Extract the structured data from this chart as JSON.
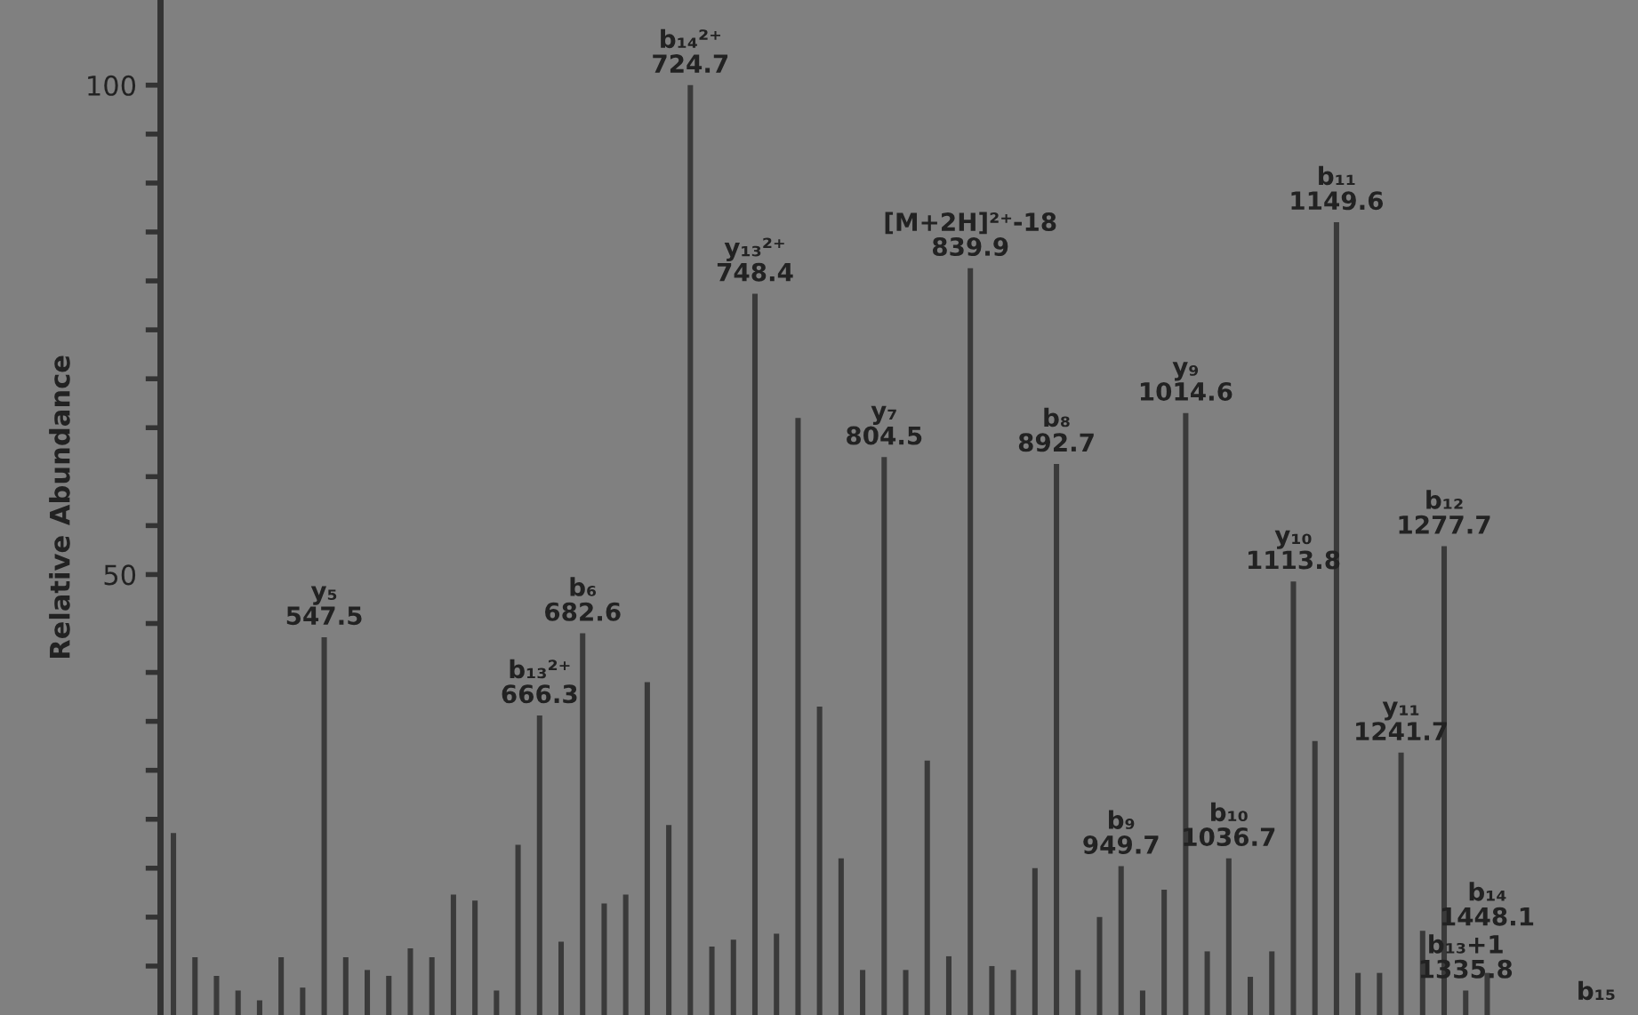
{
  "chart_data": {
    "type": "bar",
    "ylabel": "Relative Abundance",
    "categories": [
      null,
      null,
      null,
      null,
      null,
      null,
      null,
      null,
      null,
      null,
      null,
      null,
      null,
      null,
      null,
      null,
      null,
      null,
      null,
      null,
      null,
      null,
      null,
      null,
      null,
      null,
      null,
      null,
      null,
      null,
      null,
      null,
      null,
      null,
      null,
      null,
      null,
      null,
      null,
      null,
      null,
      null,
      null,
      null,
      null,
      null,
      null,
      null,
      null,
      null,
      null,
      null,
      null,
      null,
      null,
      null,
      null,
      null,
      null,
      null,
      null,
      null
    ],
    "values": [
      23.6,
      10.9,
      9,
      7.5,
      6.5,
      10.9,
      7.8,
      43.6,
      10.9,
      9.6,
      9,
      11.8,
      10.9,
      17.3,
      16.7,
      7.5,
      22.4,
      35.6,
      12.5,
      44,
      16.4,
      17.3,
      39,
      24.4,
      100,
      12,
      12.7,
      78.7,
      13.3,
      66,
      36.5,
      21,
      9.6,
      62,
      9.6,
      31,
      11,
      81.3,
      10,
      9.6,
      20,
      61.3,
      9.6,
      15,
      20.2,
      7.5,
      17.8,
      66.5,
      11.5,
      21,
      8.9,
      11.5,
      49.3,
      33,
      86,
      9.3,
      9.3,
      31.8,
      13.6,
      52.9,
      7.5,
      9.3
    ],
    "annotations": [
      {
        "text": "y₅\n547.5",
        "y": 43.6
      },
      {
        "text": "b₁₃²⁺\n666.3",
        "y": 35.6
      },
      {
        "text": "b₆\n682.6",
        "y": 44
      },
      {
        "text": "b₁₄²⁺\n724.7",
        "y": 100
      },
      {
        "text": "y₁₃²⁺\n748.4",
        "y": 78.7
      },
      {
        "text": "y₇\n804.5",
        "y": 62
      },
      {
        "text": "[M+2H]²⁺-18\n839.9",
        "y": 81.3
      },
      {
        "text": "b₈\n892.7",
        "y": 61.3
      },
      {
        "text": "b₉\n949.7",
        "y": 20.2
      },
      {
        "text": "y₉\n1014.6",
        "y": 66.5
      },
      {
        "text": "b₁₀\n1036.7",
        "y": 21
      },
      {
        "text": "y₁₀\n1113.8",
        "y": 49.3
      },
      {
        "text": "b₁₁\n1149.6",
        "y": 86
      },
      {
        "text": "y₁₁\n1241.7",
        "y": 31.8
      },
      {
        "text": "b₁₂\n1277.7",
        "y": 52.9
      },
      {
        "text": "b₁₃+1\n1335.8",
        "y": 7.5
      },
      {
        "text": "b₁₄\n1448.1",
        "y": 9.3
      },
      "b₁₅"
    ],
    "color": "#3a3a3a",
    "ylim": [
      5,
      108.7
    ],
    "yticks": [
      {
        "value": 10,
        "label": null
      },
      {
        "value": 15,
        "label": null
      },
      {
        "value": 20,
        "label": null
      },
      {
        "value": 25,
        "label": null
      },
      {
        "value": 30,
        "label": null
      },
      {
        "value": 35,
        "label": null
      },
      {
        "value": 40,
        "label": null
      },
      {
        "value": 45,
        "label": null
      },
      50,
      {
        "value": 55,
        "label": null
      },
      {
        "value": 60,
        "label": null
      },
      {
        "value": 65,
        "label": null
      },
      {
        "value": 70,
        "label": null
      },
      {
        "value": 75,
        "label": null
      },
      {
        "value": 80,
        "label": null
      },
      {
        "value": 85,
        "label": null
      },
      {
        "value": 90,
        "label": null
      },
      {
        "value": 95,
        "label": null
      },
      100
    ],
    "tick_labels": "y",
    "grid": false
  }
}
